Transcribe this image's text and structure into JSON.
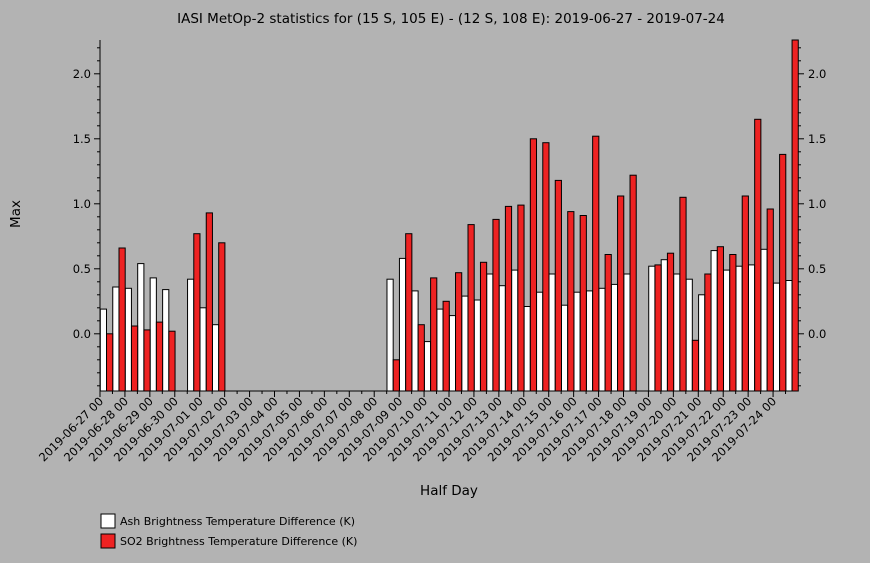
{
  "chart_data": {
    "type": "bar",
    "title": "IASI MetOp-2 statistics for (15 S, 105 E) - (12 S, 108 E): 2019-06-27 - 2019-07-24",
    "xlabel": "Half Day",
    "ylabel": "Max",
    "ylim": [
      -0.44,
      2.26
    ],
    "yticks": [
      0.0,
      0.5,
      1.0,
      1.5,
      2.0
    ],
    "ytick_labels": [
      "0.0",
      "0.5",
      "1.0",
      "1.5",
      "2.0"
    ],
    "xtick_labels": [
      "2019-06-27 00",
      "2019-06-28 00",
      "2019-06-29 00",
      "2019-06-30 00",
      "2019-07-01 00",
      "2019-07-02 00",
      "2019-07-03 00",
      "2019-07-04 00",
      "2019-07-05 00",
      "2019-07-06 00",
      "2019-07-07 00",
      "2019-07-08 00",
      "2019-07-09 00",
      "2019-07-10 00",
      "2019-07-11 00",
      "2019-07-12 00",
      "2019-07-13 00",
      "2019-07-14 00",
      "2019-07-15 00",
      "2019-07-16 00",
      "2019-07-17 00",
      "2019-07-18 00",
      "2019-07-19 00",
      "2019-07-20 00",
      "2019-07-21 00",
      "2019-07-22 00",
      "2019-07-23 00",
      "2019-07-24 00"
    ],
    "categories": [
      "2019-06-27 00",
      "2019-06-27 12",
      "2019-06-28 00",
      "2019-06-28 12",
      "2019-06-29 00",
      "2019-06-29 12",
      "2019-06-30 00",
      "2019-06-30 12",
      "2019-07-01 00",
      "2019-07-01 12",
      "2019-07-02 00",
      "2019-07-02 12",
      "2019-07-03 00",
      "2019-07-03 12",
      "2019-07-04 00",
      "2019-07-04 12",
      "2019-07-05 00",
      "2019-07-05 12",
      "2019-07-06 00",
      "2019-07-06 12",
      "2019-07-07 00",
      "2019-07-07 12",
      "2019-07-08 00",
      "2019-07-08 12",
      "2019-07-09 00",
      "2019-07-09 12",
      "2019-07-10 00",
      "2019-07-10 12",
      "2019-07-11 00",
      "2019-07-11 12",
      "2019-07-12 00",
      "2019-07-12 12",
      "2019-07-13 00",
      "2019-07-13 12",
      "2019-07-14 00",
      "2019-07-14 12",
      "2019-07-15 00",
      "2019-07-15 12",
      "2019-07-16 00",
      "2019-07-16 12",
      "2019-07-17 00",
      "2019-07-17 12",
      "2019-07-18 00",
      "2019-07-18 12",
      "2019-07-19 00",
      "2019-07-19 12",
      "2019-07-20 00",
      "2019-07-20 12",
      "2019-07-21 00",
      "2019-07-21 12",
      "2019-07-22 00",
      "2019-07-22 12",
      "2019-07-23 00",
      "2019-07-23 12",
      "2019-07-24 00",
      "2019-07-24 12"
    ],
    "series": [
      {
        "name": "Ash Brightness Temperature Difference (K)",
        "color": "#ffffff",
        "values": [
          0.19,
          0.36,
          0.35,
          0.54,
          0.43,
          0.34,
          null,
          0.42,
          0.2,
          0.07,
          null,
          null,
          null,
          null,
          null,
          null,
          null,
          null,
          null,
          null,
          null,
          null,
          null,
          0.42,
          0.58,
          0.33,
          -0.06,
          0.19,
          0.14,
          0.29,
          0.26,
          0.46,
          0.37,
          0.49,
          0.21,
          0.32,
          0.46,
          0.22,
          0.32,
          0.33,
          0.35,
          0.38,
          0.46,
          null,
          0.52,
          0.57,
          0.46,
          0.42,
          0.3,
          0.64,
          0.49,
          0.52,
          0.53,
          0.65,
          0.39,
          0.41
        ]
      },
      {
        "name": "SO2 Brightness Temperature Difference (K)",
        "color": "#ee2222",
        "values": [
          0.0,
          0.66,
          0.06,
          0.03,
          0.09,
          0.02,
          null,
          0.77,
          0.93,
          0.7,
          null,
          null,
          null,
          null,
          null,
          null,
          null,
          null,
          null,
          null,
          null,
          null,
          null,
          -0.2,
          0.77,
          0.07,
          0.43,
          0.25,
          0.47,
          0.84,
          0.55,
          0.88,
          0.98,
          0.99,
          1.5,
          1.47,
          1.18,
          0.94,
          0.91,
          1.52,
          0.61,
          1.06,
          1.22,
          null,
          0.53,
          0.62,
          1.05,
          -0.05,
          0.46,
          0.67,
          0.61,
          1.06,
          1.65,
          0.96,
          1.38,
          2.26
        ]
      }
    ],
    "legend_position": "bottom-left",
    "grid": false
  }
}
